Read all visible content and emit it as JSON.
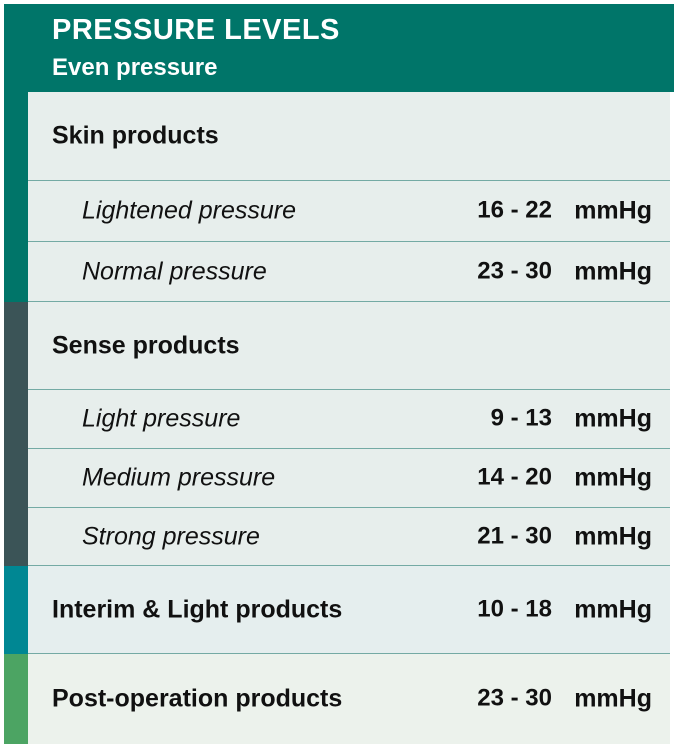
{
  "header": {
    "title": "PRESSURE LEVELS",
    "subtitle": "Even pressure"
  },
  "colors": {
    "header_bg": "#007569",
    "skin_accent": "#007569",
    "sense_accent": "#3b5457",
    "interim_accent": "#008793",
    "postop_accent": "#4ca463",
    "row_bg": "#e7eeec",
    "divider": "#74aaa4"
  },
  "skin": {
    "heading": "Skin products",
    "rows": [
      {
        "label": "Lightened pressure",
        "range": "16 - 22",
        "unit": "mmHg"
      },
      {
        "label": "Normal pressure",
        "range": "23 - 30",
        "unit": "mmHg"
      }
    ]
  },
  "sense": {
    "heading": "Sense products",
    "rows": [
      {
        "label": "Light pressure",
        "range": "9 - 13",
        "unit": "mmHg"
      },
      {
        "label": "Medium pressure",
        "range": "14 - 20",
        "unit": "mmHg"
      },
      {
        "label": "Strong pressure",
        "range": "21 - 30",
        "unit": "mmHg"
      }
    ]
  },
  "interim": {
    "label": "Interim & Light products",
    "range": "10 - 18",
    "unit": "mmHg"
  },
  "postop": {
    "label": "Post-operation products",
    "range": "23 - 30",
    "unit": "mmHg"
  }
}
